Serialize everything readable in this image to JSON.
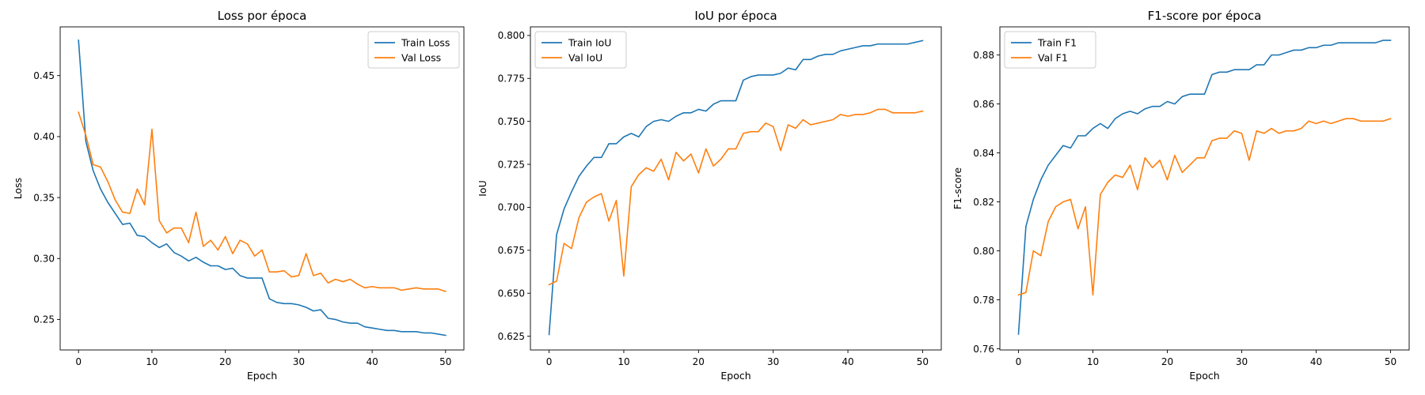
{
  "colors": {
    "train": "#1f77b4",
    "val": "#ff7f0e"
  },
  "chart_data": [
    {
      "type": "line",
      "title": "Loss por época",
      "xlabel": "Epoch",
      "ylabel": "Loss",
      "xlim": [
        -2.5,
        52.5
      ],
      "ylim": [
        0.225,
        0.49
      ],
      "xticks": [
        0,
        10,
        20,
        30,
        40,
        50
      ],
      "yticks": [
        0.25,
        0.3,
        0.35,
        0.4,
        0.45
      ],
      "ytick_decimals": 2,
      "legend": "top-right",
      "grid": false,
      "series": [
        {
          "name": "Train Loss",
          "color": "#1f77b4",
          "values": [
            0.479,
            0.396,
            0.372,
            0.357,
            0.346,
            0.337,
            0.328,
            0.329,
            0.319,
            0.318,
            0.313,
            0.309,
            0.312,
            0.305,
            0.302,
            0.298,
            0.301,
            0.297,
            0.294,
            0.294,
            0.291,
            0.292,
            0.286,
            0.284,
            0.284,
            0.284,
            0.267,
            0.264,
            0.263,
            0.263,
            0.262,
            0.26,
            0.257,
            0.258,
            0.251,
            0.25,
            0.248,
            0.247,
            0.247,
            0.244,
            0.243,
            0.242,
            0.241,
            0.241,
            0.24,
            0.24,
            0.24,
            0.239,
            0.239,
            0.238,
            0.237
          ]
        },
        {
          "name": "Val Loss",
          "color": "#ff7f0e",
          "values": [
            0.42,
            0.401,
            0.377,
            0.375,
            0.363,
            0.348,
            0.338,
            0.337,
            0.357,
            0.344,
            0.406,
            0.331,
            0.321,
            0.325,
            0.325,
            0.313,
            0.338,
            0.31,
            0.315,
            0.307,
            0.318,
            0.304,
            0.315,
            0.312,
            0.302,
            0.307,
            0.289,
            0.289,
            0.29,
            0.285,
            0.286,
            0.304,
            0.286,
            0.288,
            0.28,
            0.283,
            0.281,
            0.283,
            0.279,
            0.276,
            0.277,
            0.276,
            0.276,
            0.276,
            0.274,
            0.275,
            0.276,
            0.275,
            0.275,
            0.275,
            0.273
          ]
        }
      ]
    },
    {
      "type": "line",
      "title": "IoU por época",
      "xlabel": "Epoch",
      "ylabel": "IoU",
      "xlim": [
        -2.5,
        52.5
      ],
      "ylim": [
        0.617,
        0.805
      ],
      "xticks": [
        0,
        10,
        20,
        30,
        40,
        50
      ],
      "yticks": [
        0.625,
        0.65,
        0.675,
        0.7,
        0.725,
        0.75,
        0.775,
        0.8
      ],
      "ytick_decimals": 3,
      "legend": "top-left",
      "grid": false,
      "series": [
        {
          "name": "Train IoU",
          "color": "#1f77b4",
          "values": [
            0.626,
            0.684,
            0.699,
            0.709,
            0.718,
            0.724,
            0.729,
            0.729,
            0.737,
            0.737,
            0.741,
            0.743,
            0.741,
            0.747,
            0.75,
            0.751,
            0.75,
            0.753,
            0.755,
            0.755,
            0.757,
            0.756,
            0.76,
            0.762,
            0.762,
            0.762,
            0.774,
            0.776,
            0.777,
            0.777,
            0.777,
            0.778,
            0.781,
            0.78,
            0.786,
            0.786,
            0.788,
            0.789,
            0.789,
            0.791,
            0.792,
            0.793,
            0.794,
            0.794,
            0.795,
            0.795,
            0.795,
            0.795,
            0.795,
            0.796,
            0.797
          ]
        },
        {
          "name": "Val IoU",
          "color": "#ff7f0e",
          "values": [
            0.655,
            0.657,
            0.679,
            0.676,
            0.694,
            0.703,
            0.706,
            0.708,
            0.692,
            0.704,
            0.66,
            0.712,
            0.719,
            0.723,
            0.721,
            0.728,
            0.716,
            0.732,
            0.727,
            0.731,
            0.72,
            0.734,
            0.724,
            0.728,
            0.734,
            0.734,
            0.743,
            0.744,
            0.744,
            0.749,
            0.747,
            0.733,
            0.748,
            0.746,
            0.751,
            0.748,
            0.749,
            0.75,
            0.751,
            0.754,
            0.753,
            0.754,
            0.754,
            0.755,
            0.757,
            0.757,
            0.755,
            0.755,
            0.755,
            0.755,
            0.756
          ]
        }
      ]
    },
    {
      "type": "line",
      "title": "F1-score por época",
      "xlabel": "Epoch",
      "ylabel": "F1-score",
      "xlim": [
        -2.5,
        52.5
      ],
      "ylim": [
        0.7595,
        0.8915
      ],
      "xticks": [
        0,
        10,
        20,
        30,
        40,
        50
      ],
      "yticks": [
        0.76,
        0.78,
        0.8,
        0.82,
        0.84,
        0.86,
        0.88
      ],
      "ytick_decimals": 2,
      "legend": "top-left",
      "grid": false,
      "series": [
        {
          "name": "Train F1",
          "color": "#1f77b4",
          "values": [
            0.766,
            0.81,
            0.821,
            0.829,
            0.835,
            0.839,
            0.843,
            0.842,
            0.847,
            0.847,
            0.85,
            0.852,
            0.85,
            0.854,
            0.856,
            0.857,
            0.856,
            0.858,
            0.859,
            0.859,
            0.861,
            0.86,
            0.863,
            0.864,
            0.864,
            0.864,
            0.872,
            0.873,
            0.873,
            0.874,
            0.874,
            0.874,
            0.876,
            0.876,
            0.88,
            0.88,
            0.881,
            0.882,
            0.882,
            0.883,
            0.883,
            0.884,
            0.884,
            0.885,
            0.885,
            0.885,
            0.885,
            0.885,
            0.885,
            0.886,
            0.886
          ]
        },
        {
          "name": "Val F1",
          "color": "#ff7f0e",
          "values": [
            0.782,
            0.783,
            0.8,
            0.798,
            0.812,
            0.818,
            0.82,
            0.821,
            0.809,
            0.818,
            0.782,
            0.823,
            0.828,
            0.831,
            0.83,
            0.835,
            0.825,
            0.838,
            0.834,
            0.837,
            0.829,
            0.839,
            0.832,
            0.835,
            0.838,
            0.838,
            0.845,
            0.846,
            0.846,
            0.849,
            0.848,
            0.837,
            0.849,
            0.848,
            0.85,
            0.848,
            0.849,
            0.849,
            0.85,
            0.853,
            0.852,
            0.853,
            0.852,
            0.853,
            0.854,
            0.854,
            0.853,
            0.853,
            0.853,
            0.853,
            0.854
          ]
        }
      ]
    }
  ]
}
